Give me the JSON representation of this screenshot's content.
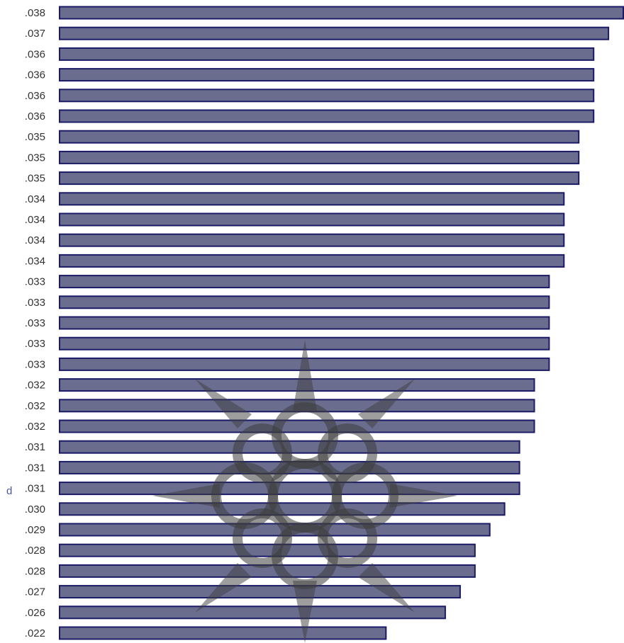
{
  "chart_data": {
    "type": "bar",
    "orientation": "horizontal",
    "title": "",
    "xlabel": "",
    "ylabel": "",
    "categories": [
      ".038",
      ".037",
      ".036",
      ".036",
      ".036",
      ".036",
      ".035",
      ".035",
      ".035",
      ".034",
      ".034",
      ".034",
      ".034",
      ".033",
      ".033",
      ".033",
      ".033",
      ".033",
      ".032",
      ".032",
      ".032",
      ".031",
      ".031",
      ".031",
      ".030",
      ".029",
      ".028",
      ".028",
      ".027",
      ".026",
      ".022"
    ],
    "values": [
      0.038,
      0.037,
      0.036,
      0.036,
      0.036,
      0.036,
      0.035,
      0.035,
      0.035,
      0.034,
      0.034,
      0.034,
      0.034,
      0.033,
      0.033,
      0.033,
      0.033,
      0.033,
      0.032,
      0.032,
      0.032,
      0.031,
      0.031,
      0.031,
      0.03,
      0.029,
      0.028,
      0.028,
      0.027,
      0.026,
      0.022
    ],
    "xlim": [
      0,
      0.038
    ],
    "grid": false,
    "legend": "none",
    "colors": {
      "bar_fill": "#6b6d8e",
      "bar_stroke": "#1a1a66"
    },
    "stray_prefix": "d"
  },
  "watermark": {
    "icon": "mandala-watermark-icon",
    "color": "#3d3d3d"
  }
}
